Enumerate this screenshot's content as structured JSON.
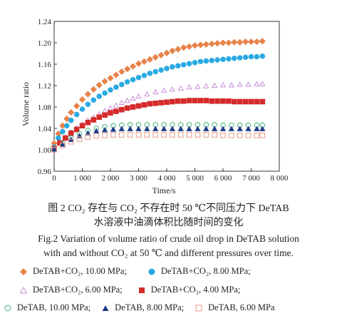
{
  "chart_data": {
    "type": "scatter",
    "xlabel": "Time/s",
    "ylabel": "Volume ratio",
    "xlim": [
      0,
      8000
    ],
    "ylim": [
      0.96,
      1.24
    ],
    "xticks": [
      0,
      1000,
      2000,
      3000,
      4000,
      5000,
      6000,
      7000,
      8000
    ],
    "xtick_labels": [
      "0",
      "1 000",
      "2 000",
      "3 000",
      "4 000",
      "5 000",
      "6 000",
      "7 000",
      "8 000"
    ],
    "yticks": [
      0.96,
      1.0,
      1.04,
      1.08,
      1.12,
      1.16,
      1.2,
      1.24
    ],
    "ytick_labels": [
      "0.96",
      "1.00",
      "1.04",
      "1.08",
      "1.12",
      "1.16",
      "1.20",
      "1.24"
    ],
    "grid": false,
    "series": [
      {
        "name": "DeTAB+CO₂, 10.00 MPa",
        "marker": "diamond",
        "filled": true,
        "color": "#e8834a",
        "x": [
          0,
          150,
          300,
          450,
          600,
          800,
          1000,
          1200,
          1400,
          1600,
          1800,
          2000,
          2200,
          2400,
          2600,
          2800,
          3000,
          3200,
          3400,
          3600,
          3800,
          4000,
          4200,
          4400,
          4600,
          4800,
          5000,
          5200,
          5400,
          5600,
          5800,
          6000,
          6200,
          6400,
          6600,
          6800,
          7000,
          7200,
          7400
        ],
        "y": [
          1.012,
          1.03,
          1.045,
          1.058,
          1.07,
          1.082,
          1.094,
          1.104,
          1.113,
          1.121,
          1.128,
          1.134,
          1.14,
          1.146,
          1.151,
          1.156,
          1.161,
          1.165,
          1.169,
          1.173,
          1.177,
          1.181,
          1.185,
          1.188,
          1.191,
          1.193,
          1.195,
          1.196,
          1.197,
          1.198,
          1.199,
          1.2,
          1.2,
          1.201,
          1.201,
          1.202,
          1.202,
          1.202,
          1.203
        ]
      },
      {
        "name": "DeTAB+CO₂, 8.00 MPa",
        "marker": "circle",
        "filled": true,
        "color": "#2aaae2",
        "x": [
          0,
          150,
          300,
          450,
          600,
          800,
          1000,
          1200,
          1400,
          1600,
          1800,
          2000,
          2200,
          2400,
          2600,
          2800,
          3000,
          3200,
          3400,
          3600,
          3800,
          4000,
          4200,
          4400,
          4600,
          4800,
          5000,
          5200,
          5400,
          5600,
          5800,
          6000,
          6200,
          6400,
          6600,
          6800,
          7000,
          7200,
          7400
        ],
        "y": [
          1.005,
          1.022,
          1.034,
          1.045,
          1.055,
          1.066,
          1.076,
          1.085,
          1.093,
          1.1,
          1.106,
          1.112,
          1.117,
          1.122,
          1.127,
          1.131,
          1.135,
          1.139,
          1.143,
          1.146,
          1.149,
          1.152,
          1.155,
          1.157,
          1.159,
          1.161,
          1.163,
          1.165,
          1.166,
          1.167,
          1.168,
          1.169,
          1.17,
          1.171,
          1.172,
          1.173,
          1.174,
          1.174,
          1.175
        ]
      },
      {
        "name": "DeTAB+CO₂, 6.00 MPa",
        "marker": "triangle",
        "filled": false,
        "color": "#c98fd6",
        "x": [
          0,
          200,
          400,
          600,
          800,
          1000,
          1200,
          1400,
          1600,
          1800,
          2000,
          2200,
          2400,
          2600,
          2800,
          3000,
          3300,
          3600,
          3900,
          4200,
          4500,
          4800,
          5100,
          5400,
          5700,
          6000,
          6300,
          6600,
          6900,
          7200,
          7400
        ],
        "y": [
          1.003,
          1.014,
          1.024,
          1.033,
          1.041,
          1.048,
          1.055,
          1.061,
          1.067,
          1.073,
          1.078,
          1.083,
          1.088,
          1.092,
          1.096,
          1.1,
          1.104,
          1.108,
          1.111,
          1.113,
          1.115,
          1.117,
          1.118,
          1.119,
          1.12,
          1.121,
          1.121,
          1.122,
          1.122,
          1.123,
          1.123
        ]
      },
      {
        "name": "DeTAB+CO₂, 4.00 MPa",
        "marker": "square",
        "filled": true,
        "color": "#d42a2a",
        "x": [
          0,
          200,
          400,
          600,
          800,
          1000,
          1200,
          1400,
          1600,
          1800,
          2000,
          2200,
          2400,
          2600,
          2800,
          3000,
          3200,
          3400,
          3600,
          3800,
          4000,
          4200,
          4400,
          4600,
          4800,
          5000,
          5200,
          5400,
          5600,
          5800,
          6000,
          6200,
          6400,
          6600,
          6800,
          7000,
          7200,
          7400
        ],
        "y": [
          1.002,
          1.013,
          1.022,
          1.031,
          1.038,
          1.045,
          1.051,
          1.056,
          1.061,
          1.065,
          1.069,
          1.072,
          1.075,
          1.078,
          1.08,
          1.082,
          1.084,
          1.086,
          1.087,
          1.088,
          1.089,
          1.09,
          1.091,
          1.091,
          1.092,
          1.092,
          1.092,
          1.092,
          1.091,
          1.091,
          1.091,
          1.091,
          1.09,
          1.09,
          1.09,
          1.09,
          1.09,
          1.09
        ]
      },
      {
        "name": "DeTAB, 10.00 MPa",
        "marker": "circle",
        "filled": false,
        "color": "#3fae7a",
        "x": [
          0,
          300,
          600,
          900,
          1200,
          1500,
          1800,
          2100,
          2400,
          2700,
          3000,
          3300,
          3600,
          3900,
          4200,
          4500,
          4800,
          5100,
          5400,
          5700,
          6000,
          6300,
          6600,
          6900,
          7200,
          7400
        ],
        "y": [
          1.001,
          1.012,
          1.022,
          1.03,
          1.036,
          1.04,
          1.043,
          1.045,
          1.046,
          1.047,
          1.047,
          1.047,
          1.047,
          1.047,
          1.047,
          1.047,
          1.047,
          1.047,
          1.047,
          1.047,
          1.046,
          1.046,
          1.046,
          1.046,
          1.046,
          1.046
        ]
      },
      {
        "name": "DeTAB, 8.00 MPa",
        "marker": "triangle",
        "filled": true,
        "color": "#1e3a8a",
        "x": [
          0,
          300,
          600,
          900,
          1200,
          1500,
          1800,
          2100,
          2400,
          2700,
          3000,
          3300,
          3600,
          3900,
          4200,
          4500,
          4800,
          5100,
          5400,
          5700,
          6000,
          6300,
          6600,
          6900,
          7200,
          7400
        ],
        "y": [
          1.001,
          1.01,
          1.019,
          1.026,
          1.031,
          1.035,
          1.037,
          1.038,
          1.039,
          1.039,
          1.039,
          1.039,
          1.039,
          1.039,
          1.039,
          1.039,
          1.039,
          1.039,
          1.039,
          1.039,
          1.039,
          1.039,
          1.039,
          1.039,
          1.039,
          1.039
        ]
      },
      {
        "name": "DeTAB, 6.00 MPa",
        "marker": "square",
        "filled": false,
        "color": "#e89a86",
        "x": [
          0,
          300,
          600,
          900,
          1200,
          1500,
          1800,
          2100,
          2400,
          2700,
          3000,
          3300,
          3600,
          3900,
          4200,
          4500,
          4800,
          5100,
          5400,
          5700,
          6000,
          6300,
          6600,
          6900,
          7200,
          7400
        ],
        "y": [
          1.0,
          1.008,
          1.015,
          1.02,
          1.024,
          1.026,
          1.027,
          1.028,
          1.028,
          1.028,
          1.028,
          1.028,
          1.028,
          1.028,
          1.028,
          1.028,
          1.028,
          1.028,
          1.028,
          1.028,
          1.027,
          1.027,
          1.027,
          1.027,
          1.027,
          1.027
        ]
      }
    ]
  },
  "caption": {
    "cn_line1": "图 2   CO₂ 存在与 CO₂ 不存在时 50 ℃不同压力下 DeTAB",
    "cn_line2": "水溶液中油滴体积比随时间的变化",
    "en_line1": "Fig.2   Variation of volume ratio of crude oil drop in DeTAB solution",
    "en_line2": "with and without CO₂ at 50 ℃ and different pressures over time."
  },
  "legend": {
    "row1": [
      "DeTAB+CO₂, 10.00 MPa;",
      "DeTAB+CO₂, 8.00 MPa;"
    ],
    "row2": [
      "DeTAB+CO₂, 6.00 MPa;",
      "DeTAB+CO₂, 4.00 MPa;"
    ],
    "row3": [
      "DeTAB, 10.00 MPa;",
      "DeTAB, 8.00 MPa;",
      "DeTAB, 6.00 MPa"
    ]
  }
}
